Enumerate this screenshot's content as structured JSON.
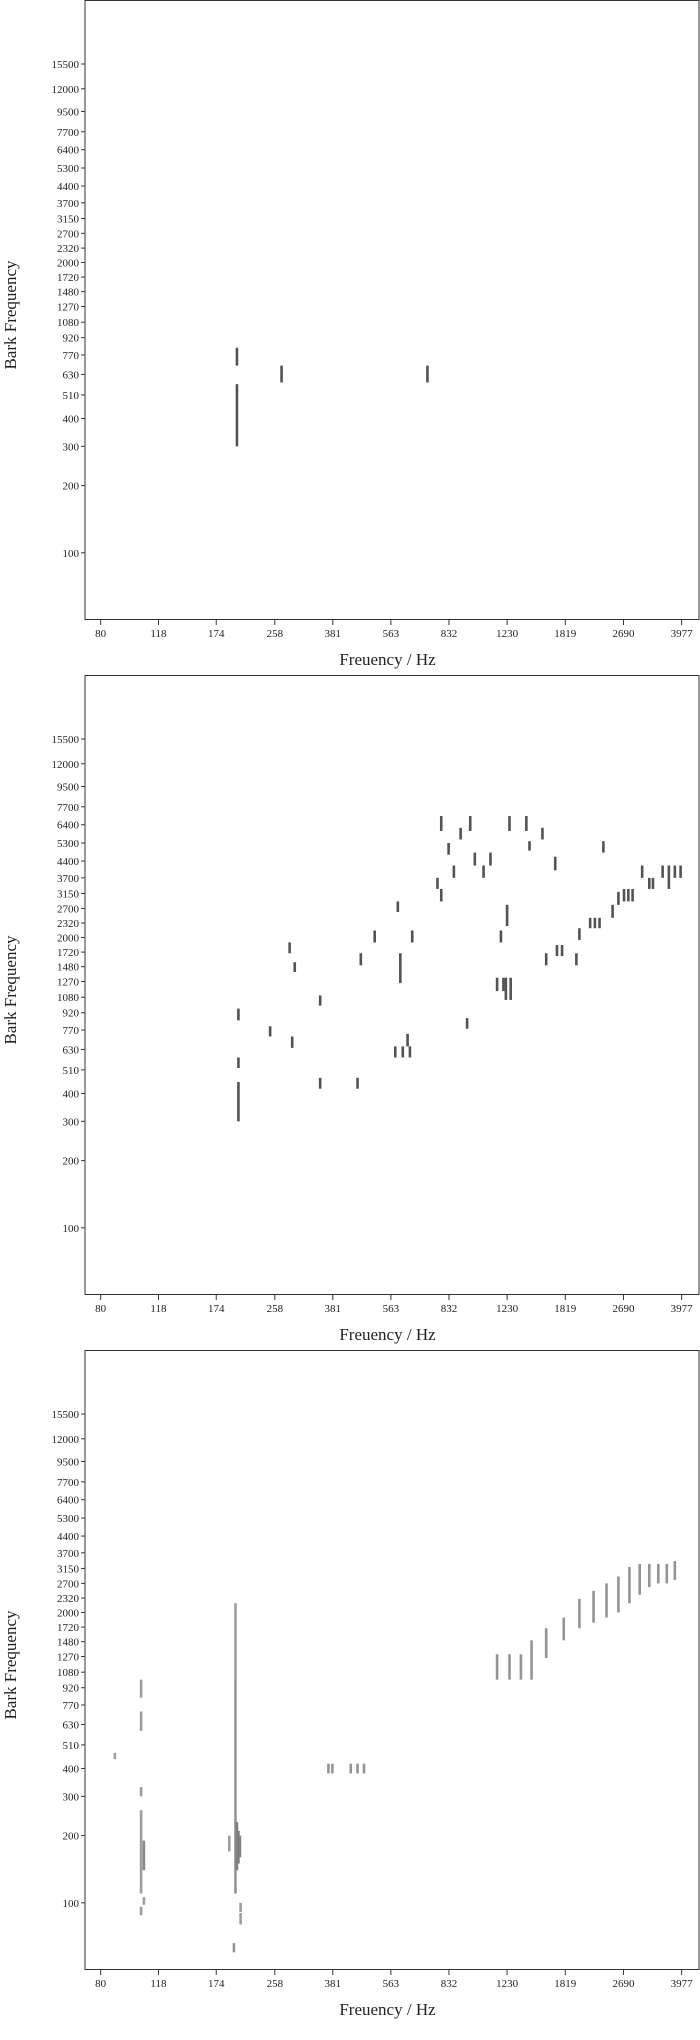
{
  "chart_data": [
    {
      "type": "heatmap",
      "title": "",
      "xlabel": "Freuency / Hz",
      "ylabel": "Bark Frequency",
      "x_scale": "log",
      "y_scale": "log",
      "xlim": [
        72,
        4500
      ],
      "ylim": [
        50,
        30000
      ],
      "x_ticks": [
        "80",
        "118",
        "174",
        "258",
        "381",
        "563",
        "832",
        "1230",
        "1819",
        "2690",
        "3977"
      ],
      "y_ticks": [
        "100",
        "200",
        "300",
        "400",
        "510",
        "630",
        "770",
        "920",
        "1080",
        "1270",
        "1480",
        "1720",
        "2000",
        "2320",
        "2700",
        "3150",
        "3700",
        "4400",
        "5300",
        "6400",
        "7700",
        "9500",
        "12000",
        "15500"
      ],
      "cells": [
        {
          "x": 200,
          "y0": 300,
          "y1": 570,
          "v": 0.8
        },
        {
          "x": 200,
          "y0": 690,
          "y1": 830,
          "v": 0.8
        },
        {
          "x": 270,
          "y0": 580,
          "y1": 690,
          "v": 0.8
        },
        {
          "x": 720,
          "y0": 580,
          "y1": 690,
          "v": 0.8
        }
      ]
    },
    {
      "type": "heatmap",
      "title": "",
      "xlabel": "Freuency / Hz",
      "ylabel": "Bark Frequency",
      "x_scale": "log",
      "y_scale": "log",
      "xlim": [
        72,
        4500
      ],
      "ylim": [
        50,
        30000
      ],
      "x_ticks": [
        "80",
        "118",
        "174",
        "258",
        "381",
        "563",
        "832",
        "1230",
        "1819",
        "2690",
        "3977"
      ],
      "y_ticks": [
        "100",
        "200",
        "300",
        "400",
        "510",
        "630",
        "770",
        "920",
        "1080",
        "1270",
        "1480",
        "1720",
        "2000",
        "2320",
        "2700",
        "3150",
        "3700",
        "4400",
        "5300",
        "6400",
        "7700",
        "9500",
        "12000",
        "15500"
      ],
      "cells": [
        {
          "x": 202,
          "y0": 300,
          "y1": 450,
          "v": 0.8
        },
        {
          "x": 202,
          "y0": 520,
          "y1": 580,
          "v": 0.8
        },
        {
          "x": 202,
          "y0": 850,
          "y1": 960,
          "v": 0.8
        },
        {
          "x": 250,
          "y0": 720,
          "y1": 800,
          "v": 0.8
        },
        {
          "x": 290,
          "y0": 640,
          "y1": 720,
          "v": 0.8
        },
        {
          "x": 285,
          "y0": 1700,
          "y1": 1900,
          "v": 0.8
        },
        {
          "x": 295,
          "y0": 1400,
          "y1": 1550,
          "v": 0.8
        },
        {
          "x": 350,
          "y0": 420,
          "y1": 470,
          "v": 0.8
        },
        {
          "x": 350,
          "y0": 990,
          "y1": 1100,
          "v": 0.8
        },
        {
          "x": 450,
          "y0": 420,
          "y1": 470,
          "v": 0.8
        },
        {
          "x": 460,
          "y0": 1500,
          "y1": 1700,
          "v": 0.8
        },
        {
          "x": 505,
          "y0": 1900,
          "y1": 2150,
          "v": 0.8
        },
        {
          "x": 580,
          "y0": 580,
          "y1": 650,
          "v": 0.8
        },
        {
          "x": 590,
          "y0": 2600,
          "y1": 2900,
          "v": 0.8
        },
        {
          "x": 600,
          "y0": 1250,
          "y1": 1700,
          "v": 0.8
        },
        {
          "x": 610,
          "y0": 580,
          "y1": 650,
          "v": 0.8
        },
        {
          "x": 630,
          "y0": 650,
          "y1": 740,
          "v": 0.8
        },
        {
          "x": 640,
          "y0": 580,
          "y1": 650,
          "v": 0.8
        },
        {
          "x": 650,
          "y0": 1900,
          "y1": 2150,
          "v": 0.8
        },
        {
          "x": 770,
          "y0": 3300,
          "y1": 3700,
          "v": 0.8
        },
        {
          "x": 790,
          "y0": 2900,
          "y1": 3300,
          "v": 0.8
        },
        {
          "x": 790,
          "y0": 6000,
          "y1": 7000,
          "v": 0.8
        },
        {
          "x": 830,
          "y0": 4700,
          "y1": 5300,
          "v": 0.8
        },
        {
          "x": 860,
          "y0": 3700,
          "y1": 4200,
          "v": 0.8
        },
        {
          "x": 900,
          "y0": 5500,
          "y1": 6200,
          "v": 0.8
        },
        {
          "x": 940,
          "y0": 780,
          "y1": 870,
          "v": 0.8
        },
        {
          "x": 960,
          "y0": 6000,
          "y1": 7000,
          "v": 0.8
        },
        {
          "x": 990,
          "y0": 4200,
          "y1": 4800,
          "v": 0.8
        },
        {
          "x": 1050,
          "y0": 3700,
          "y1": 4200,
          "v": 0.8
        },
        {
          "x": 1100,
          "y0": 4200,
          "y1": 4800,
          "v": 0.8
        },
        {
          "x": 1150,
          "y0": 1150,
          "y1": 1320,
          "v": 0.8
        },
        {
          "x": 1180,
          "y0": 1900,
          "y1": 2150,
          "v": 0.8
        },
        {
          "x": 1200,
          "y0": 1150,
          "y1": 1320,
          "v": 0.8
        },
        {
          "x": 1220,
          "y0": 1050,
          "y1": 1320,
          "v": 0.8
        },
        {
          "x": 1230,
          "y0": 2250,
          "y1": 2800,
          "v": 0.8
        },
        {
          "x": 1250,
          "y0": 6000,
          "y1": 7000,
          "v": 0.8
        },
        {
          "x": 1260,
          "y0": 1050,
          "y1": 1320,
          "v": 0.8
        },
        {
          "x": 1400,
          "y0": 6000,
          "y1": 7000,
          "v": 0.8
        },
        {
          "x": 1430,
          "y0": 4900,
          "y1": 5400,
          "v": 0.8
        },
        {
          "x": 1560,
          "y0": 5500,
          "y1": 6200,
          "v": 0.8
        },
        {
          "x": 1600,
          "y0": 1500,
          "y1": 1700,
          "v": 0.8
        },
        {
          "x": 1700,
          "y0": 4000,
          "y1": 4600,
          "v": 0.8
        },
        {
          "x": 1720,
          "y0": 1650,
          "y1": 1850,
          "v": 0.8
        },
        {
          "x": 1780,
          "y0": 1650,
          "y1": 1850,
          "v": 0.8
        },
        {
          "x": 1960,
          "y0": 1500,
          "y1": 1700,
          "v": 0.8
        },
        {
          "x": 2000,
          "y0": 1950,
          "y1": 2200,
          "v": 0.8
        },
        {
          "x": 2150,
          "y0": 2200,
          "y1": 2450,
          "v": 0.8
        },
        {
          "x": 2220,
          "y0": 2200,
          "y1": 2450,
          "v": 0.8
        },
        {
          "x": 2290,
          "y0": 2200,
          "y1": 2450,
          "v": 0.8
        },
        {
          "x": 2350,
          "y0": 4800,
          "y1": 5400,
          "v": 0.8
        },
        {
          "x": 2500,
          "y0": 2450,
          "y1": 2800,
          "v": 0.8
        },
        {
          "x": 2600,
          "y0": 2800,
          "y1": 3200,
          "v": 0.8
        },
        {
          "x": 2700,
          "y0": 2900,
          "y1": 3300,
          "v": 0.8
        },
        {
          "x": 2780,
          "y0": 2900,
          "y1": 3300,
          "v": 0.8
        },
        {
          "x": 2860,
          "y0": 2900,
          "y1": 3300,
          "v": 0.8
        },
        {
          "x": 3050,
          "y0": 3700,
          "y1": 4200,
          "v": 0.8
        },
        {
          "x": 3200,
          "y0": 3300,
          "y1": 3700,
          "v": 0.8
        },
        {
          "x": 3280,
          "y0": 3300,
          "y1": 3700,
          "v": 0.8
        },
        {
          "x": 3500,
          "y0": 3700,
          "y1": 4200,
          "v": 0.8
        },
        {
          "x": 3650,
          "y0": 3300,
          "y1": 4200,
          "v": 0.8
        },
        {
          "x": 3800,
          "y0": 3700,
          "y1": 4200,
          "v": 0.8
        },
        {
          "x": 3950,
          "y0": 3700,
          "y1": 4200,
          "v": 0.8
        }
      ]
    },
    {
      "type": "heatmap",
      "title": "",
      "xlabel": "Freuency / Hz",
      "ylabel": "Bark Frequency",
      "x_scale": "log",
      "y_scale": "log",
      "xlim": [
        72,
        4500
      ],
      "ylim": [
        50,
        30000
      ],
      "x_ticks": [
        "80",
        "118",
        "174",
        "258",
        "381",
        "563",
        "832",
        "1230",
        "1819",
        "2690",
        "3977"
      ],
      "y_ticks": [
        "100",
        "200",
        "300",
        "400",
        "510",
        "630",
        "770",
        "920",
        "1080",
        "1270",
        "1480",
        "1720",
        "2000",
        "2320",
        "2700",
        "3150",
        "3700",
        "4400",
        "5300",
        "6400",
        "7700",
        "9500",
        "12000",
        "15500"
      ],
      "cells": [
        {
          "x": 105,
          "y0": 88,
          "y1": 96,
          "v": 0.45
        },
        {
          "x": 107,
          "y0": 98,
          "y1": 106,
          "v": 0.45
        },
        {
          "x": 105,
          "y0": 110,
          "y1": 260,
          "v": 0.45
        },
        {
          "x": 107,
          "y0": 140,
          "y1": 190,
          "v": 0.55
        },
        {
          "x": 105,
          "y0": 300,
          "y1": 330,
          "v": 0.45
        },
        {
          "x": 105,
          "y0": 590,
          "y1": 720,
          "v": 0.45
        },
        {
          "x": 105,
          "y0": 830,
          "y1": 1000,
          "v": 0.45
        },
        {
          "x": 88,
          "y0": 440,
          "y1": 470,
          "v": 0.45
        },
        {
          "x": 196,
          "y0": 60,
          "y1": 66,
          "v": 0.5
        },
        {
          "x": 198,
          "y0": 110,
          "y1": 1000,
          "v": 0.5
        },
        {
          "x": 200,
          "y0": 140,
          "y1": 230,
          "v": 0.6
        },
        {
          "x": 202,
          "y0": 150,
          "y1": 210,
          "v": 0.6
        },
        {
          "x": 204,
          "y0": 160,
          "y1": 200,
          "v": 0.6
        },
        {
          "x": 198,
          "y0": 1000,
          "y1": 2200,
          "v": 0.45
        },
        {
          "x": 205,
          "y0": 80,
          "y1": 90,
          "v": 0.45
        },
        {
          "x": 205,
          "y0": 91,
          "y1": 100,
          "v": 0.45
        },
        {
          "x": 190,
          "y0": 170,
          "y1": 200,
          "v": 0.45
        },
        {
          "x": 370,
          "y0": 380,
          "y1": 420,
          "v": 0.5
        },
        {
          "x": 380,
          "y0": 380,
          "y1": 420,
          "v": 0.5
        },
        {
          "x": 430,
          "y0": 380,
          "y1": 420,
          "v": 0.5
        },
        {
          "x": 450,
          "y0": 380,
          "y1": 420,
          "v": 0.5
        },
        {
          "x": 470,
          "y0": 380,
          "y1": 420,
          "v": 0.5
        },
        {
          "x": 1150,
          "y0": 1000,
          "y1": 1300,
          "v": 0.5
        },
        {
          "x": 1250,
          "y0": 1000,
          "y1": 1300,
          "v": 0.5
        },
        {
          "x": 1350,
          "y0": 1000,
          "y1": 1300,
          "v": 0.5
        },
        {
          "x": 1450,
          "y0": 1000,
          "y1": 1500,
          "v": 0.5
        },
        {
          "x": 1600,
          "y0": 1250,
          "y1": 1700,
          "v": 0.5
        },
        {
          "x": 1800,
          "y0": 1500,
          "y1": 1900,
          "v": 0.5
        },
        {
          "x": 2000,
          "y0": 1700,
          "y1": 2300,
          "v": 0.5
        },
        {
          "x": 2200,
          "y0": 1800,
          "y1": 2500,
          "v": 0.5
        },
        {
          "x": 2400,
          "y0": 1900,
          "y1": 2700,
          "v": 0.5
        },
        {
          "x": 2600,
          "y0": 2000,
          "y1": 2900,
          "v": 0.5
        },
        {
          "x": 2800,
          "y0": 2200,
          "y1": 3200,
          "v": 0.5
        },
        {
          "x": 3000,
          "y0": 2400,
          "y1": 3300,
          "v": 0.5
        },
        {
          "x": 3200,
          "y0": 2600,
          "y1": 3300,
          "v": 0.5
        },
        {
          "x": 3400,
          "y0": 2700,
          "y1": 3300,
          "v": 0.5
        },
        {
          "x": 3600,
          "y0": 2700,
          "y1": 3300,
          "v": 0.5
        },
        {
          "x": 3800,
          "y0": 2800,
          "y1": 3400,
          "v": 0.5
        }
      ]
    }
  ]
}
